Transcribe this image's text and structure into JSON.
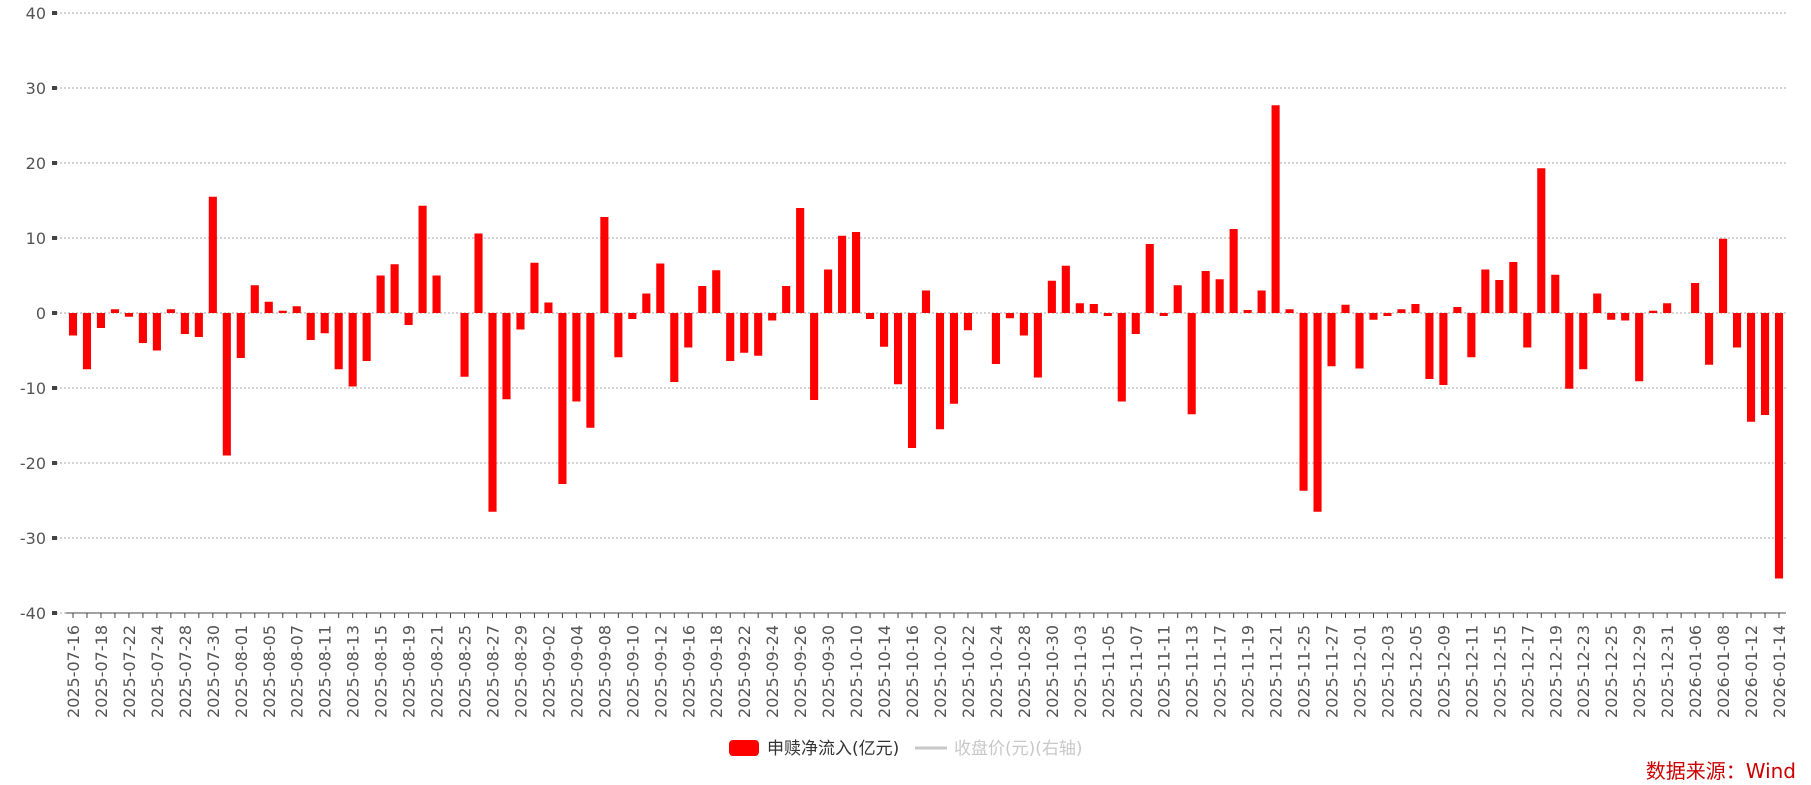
{
  "chart_data": {
    "type": "bar",
    "ylim": [
      -40,
      40
    ],
    "yticks": [
      40,
      30,
      20,
      10,
      0,
      -10,
      -20,
      -30,
      -40
    ],
    "grid": true,
    "x_tick_labels": [
      "2025-07-16",
      "2025-07-18",
      "2025-07-22",
      "2025-07-24",
      "2025-07-28",
      "2025-07-30",
      "2025-08-01",
      "2025-08-05",
      "2025-08-07",
      "2025-08-11",
      "2025-08-13",
      "2025-08-15",
      "2025-08-19",
      "2025-08-21",
      "2025-08-25",
      "2025-08-27",
      "2025-08-29",
      "2025-09-02",
      "2025-09-04",
      "2025-09-08",
      "2025-09-10",
      "2025-09-12",
      "2025-09-16",
      "2025-09-18",
      "2025-09-22",
      "2025-09-24",
      "2025-09-26",
      "2025-09-30",
      "2025-10-10",
      "2025-10-14",
      "2025-10-16",
      "2025-10-20",
      "2025-10-22",
      "2025-10-24",
      "2025-10-28",
      "2025-10-30",
      "2025-11-03",
      "2025-11-05",
      "2025-11-07",
      "2025-11-11",
      "2025-11-13",
      "2025-11-17",
      "2025-11-19",
      "2025-11-21",
      "2025-11-25",
      "2025-11-27",
      "2025-12-01",
      "2025-12-03",
      "2025-12-05",
      "2025-12-09",
      "2025-12-11",
      "2025-12-15",
      "2025-12-17",
      "2025-12-19",
      "2025-12-23",
      "2025-12-25",
      "2025-12-29",
      "2025-12-31",
      "2026-01-06",
      "2026-01-08",
      "2026-01-12",
      "2026-01-14"
    ],
    "series": [
      {
        "name": "申赎净流入(亿元)",
        "color": "#ff0000",
        "values": [
          -3,
          -7.5,
          -2,
          0.5,
          -0.5,
          -4,
          -5,
          0.5,
          -2.8,
          -3.2,
          15.5,
          -19,
          -6,
          3.7,
          1.5,
          0.3,
          0.9,
          -3.6,
          -2.7,
          -7.5,
          -9.8,
          -6.4,
          5,
          6.5,
          -1.6,
          14.3,
          5,
          0,
          -8.5,
          10.6,
          -26.5,
          -11.5,
          -2.2,
          6.7,
          1.4,
          -22.8,
          -11.8,
          -15.3,
          12.8,
          -5.9,
          -0.8,
          2.6,
          6.6,
          -9.2,
          -4.6,
          3.6,
          5.7,
          -6.4,
          -5.3,
          -5.7,
          -1,
          3.6,
          14,
          -11.6,
          5.8,
          10.3,
          10.8,
          -0.8,
          -4.5,
          -9.5,
          -18,
          3,
          -15.5,
          -12.1,
          -2.3,
          0,
          -6.8,
          -0.7,
          -3,
          -8.6,
          4.3,
          6.3,
          1.3,
          1.2,
          -0.4,
          -11.8,
          -2.8,
          9.2,
          -0.4,
          3.7,
          -13.5,
          5.6,
          4.5,
          11.2,
          0.4,
          3,
          27.7,
          0.5,
          -23.7,
          -26.5,
          -7.1,
          1.1,
          -7.4,
          -0.9,
          -0.4,
          0.5,
          1.2,
          -8.8,
          -9.6,
          0.8,
          -5.9,
          5.8,
          4.4,
          6.8,
          -4.6,
          19.3,
          5.1,
          -10.1,
          -7.5,
          2.6,
          -0.9,
          -1,
          -9.1,
          0.3,
          1.3,
          0,
          4,
          -6.9,
          9.9,
          -4.6,
          -14.5,
          -13.6,
          -35.4
        ]
      },
      {
        "name": "收盘价(元)(右轴)",
        "color": "#c8c8c8",
        "hidden": true,
        "values": []
      }
    ]
  },
  "source_note": "数据来源：Wind"
}
